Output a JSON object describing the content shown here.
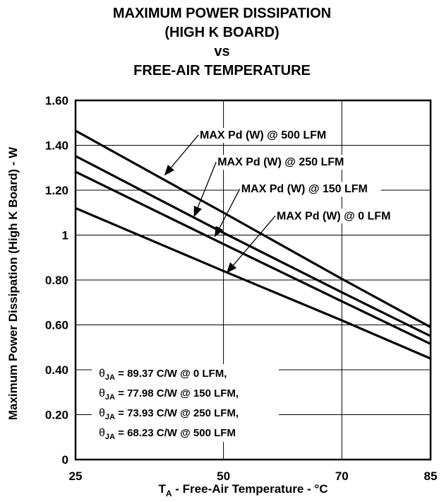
{
  "chart_data": {
    "type": "line",
    "title": [
      "MAXIMUM POWER DISSIPATION",
      "(HIGH K BOARD)",
      "vs",
      "FREE-AIR TEMPERATURE"
    ],
    "xlabel_main": "T",
    "xlabel_sub": "A",
    "xlabel_rest": " - Free-Air Temperature - °C",
    "ylabel": "Maximum Power Dissipation (High K Board) - W",
    "xlim": [
      25,
      85
    ],
    "ylim": [
      0,
      1.6
    ],
    "x_ticks": [
      25,
      50,
      70,
      85
    ],
    "x_tick_labels": [
      "25",
      "50",
      "70",
      "85"
    ],
    "y_ticks": [
      0,
      0.2,
      0.4,
      0.6,
      0.8,
      1.0,
      1.2,
      1.4,
      1.6
    ],
    "y_tick_labels": [
      "0",
      "0.20",
      "0.40",
      "0.60",
      "0.80",
      "1",
      "1.20",
      "1.40",
      "1.60"
    ],
    "grid": true,
    "series": [
      {
        "name": "MAX Pd (W) @ 500 LFM",
        "x": [
          25,
          50,
          70,
          85
        ],
        "y": [
          1.465,
          1.1,
          0.805,
          0.59
        ]
      },
      {
        "name": "MAX Pd (W) @ 250 LFM",
        "x": [
          25,
          50,
          70,
          85
        ],
        "y": [
          1.352,
          1.01,
          0.745,
          0.55
        ]
      },
      {
        "name": "MAX Pd (W) @ 150 LFM",
        "x": [
          25,
          50,
          70,
          85
        ],
        "y": [
          1.282,
          0.96,
          0.705,
          0.515
        ]
      },
      {
        "name": "MAX Pd (W) @ 0 LFM",
        "x": [
          25,
          50,
          70,
          85
        ],
        "y": [
          1.12,
          0.84,
          0.62,
          0.45
        ]
      }
    ],
    "annotations": [
      {
        "text": "MAX Pd (W) @ 500 LFM",
        "series": 0,
        "point": [
          40,
          1.265
        ],
        "label_at": [
          46,
          1.43
        ]
      },
      {
        "text": "MAX Pd (W) @ 250 LFM",
        "series": 1,
        "point": [
          45,
          1.08
        ],
        "label_at": [
          49,
          1.31
        ]
      },
      {
        "text": "MAX Pd (W) @ 150 LFM",
        "series": 2,
        "point": [
          48.5,
          0.99
        ],
        "label_at": [
          53,
          1.19
        ]
      },
      {
        "text": "MAX Pd (W) @ 0 LFM",
        "series": 3,
        "point": [
          50.5,
          0.83
        ],
        "label_at": [
          59,
          1.07
        ]
      }
    ],
    "theta_notes": [
      {
        "symbol": "θ",
        "sub": "JA",
        "text": " = 89.37 C/W @ 0 LFM,"
      },
      {
        "symbol": "θ",
        "sub": "JA",
        "text": " = 77.98 C/W @ 150 LFM,"
      },
      {
        "symbol": "θ",
        "sub": "JA",
        "text": " = 73.93 C/W @ 250 LFM,"
      },
      {
        "symbol": "θ",
        "sub": "JA",
        "text": " = 68.23 C/W @ 500 LFM"
      }
    ],
    "colors": {
      "line": "#000000",
      "grid": "#000000",
      "background": "#ffffff"
    }
  }
}
